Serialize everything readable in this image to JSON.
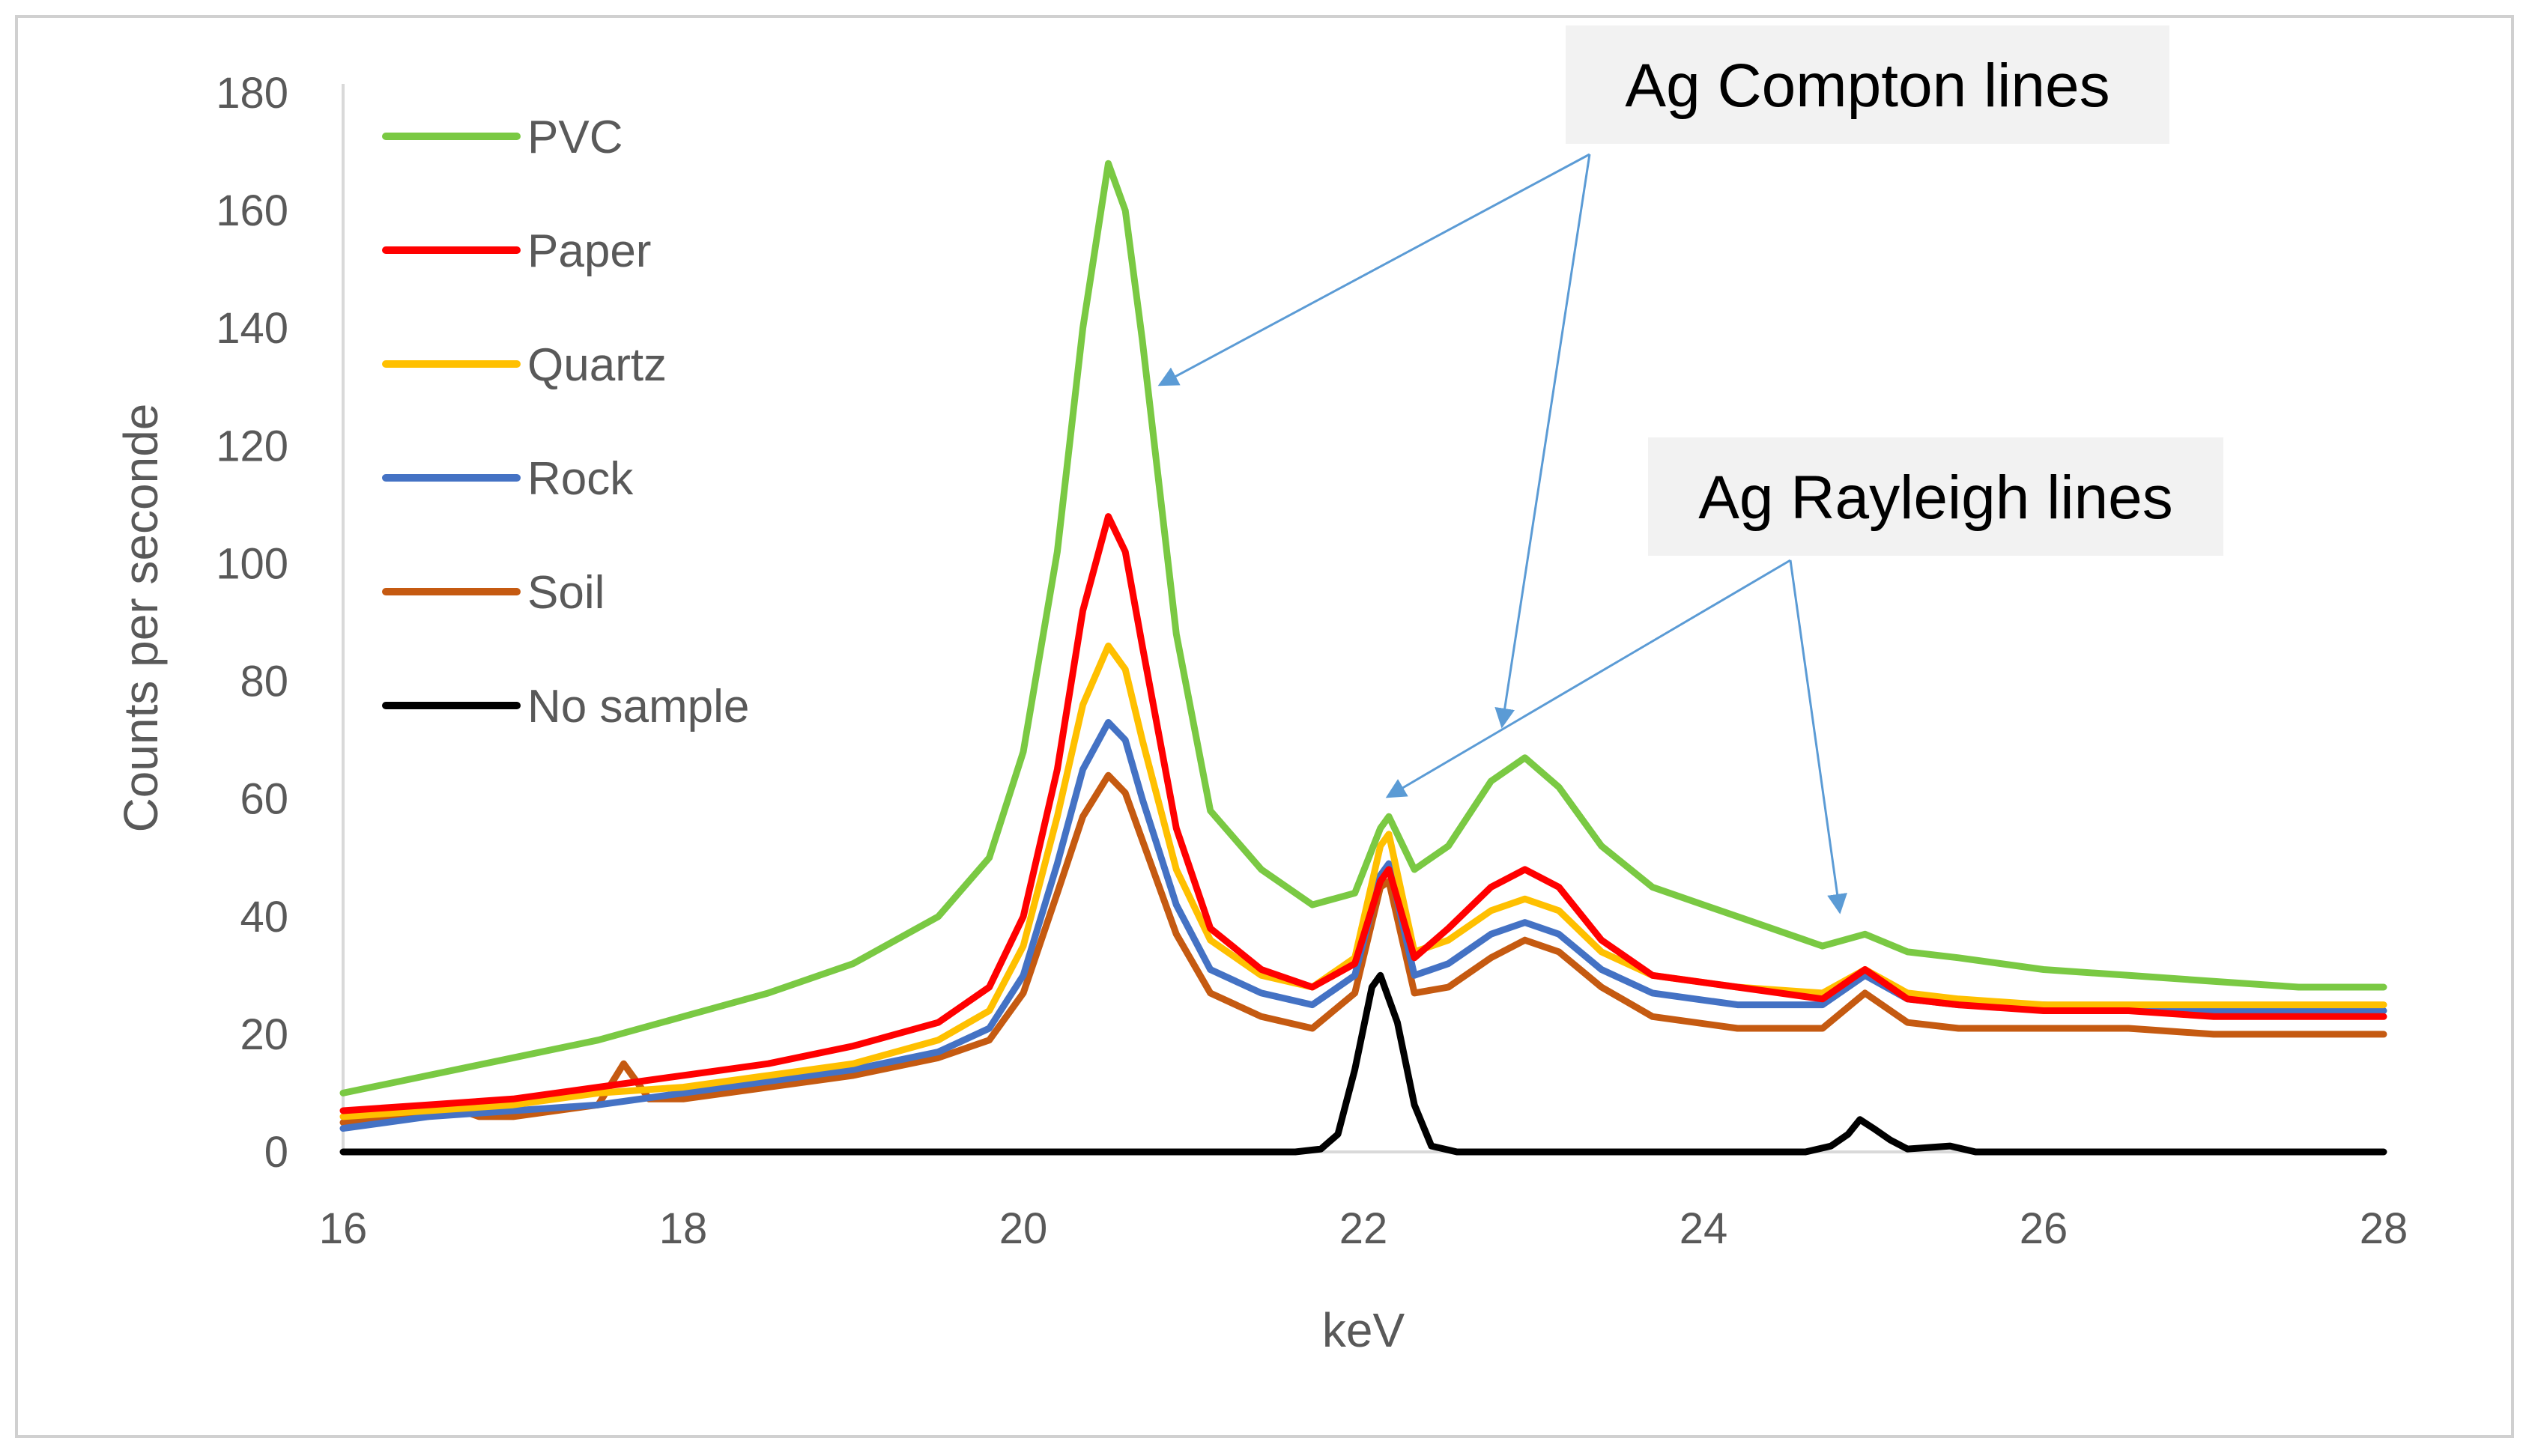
{
  "chart_data": {
    "type": "line",
    "title": "",
    "xlabel": "keV",
    "ylabel": "Counts per seconde",
    "xlim": [
      16,
      28
    ],
    "ylim": [
      0,
      180
    ],
    "x_ticks": [
      "16",
      "18",
      "20",
      "22",
      "24",
      "26",
      "28"
    ],
    "y_ticks": [
      "0",
      "20",
      "40",
      "60",
      "80",
      "100",
      "120",
      "140",
      "160",
      "180"
    ],
    "grid": false,
    "legend_position": "top-left",
    "series": [
      {
        "name": "PVC",
        "color": "#7ac943",
        "x": [
          16,
          16.5,
          17,
          17.5,
          18,
          18.5,
          19,
          19.5,
          19.8,
          20,
          20.2,
          20.35,
          20.5,
          20.6,
          20.7,
          20.9,
          21.1,
          21.4,
          21.7,
          21.95,
          22.1,
          22.15,
          22.3,
          22.5,
          22.75,
          22.95,
          23.15,
          23.4,
          23.7,
          24.2,
          24.7,
          24.95,
          25.2,
          25.5,
          26,
          26.5,
          27,
          27.5,
          28
        ],
        "values": [
          10,
          13,
          16,
          19,
          23,
          27,
          32,
          40,
          50,
          68,
          102,
          140,
          168,
          160,
          138,
          88,
          58,
          48,
          42,
          44,
          55,
          57,
          48,
          52,
          63,
          67,
          62,
          52,
          45,
          40,
          35,
          37,
          34,
          33,
          31,
          30,
          29,
          28,
          28
        ]
      },
      {
        "name": "Paper",
        "color": "#ff0000",
        "x": [
          16,
          16.5,
          17,
          17.5,
          18,
          18.5,
          19,
          19.5,
          19.8,
          20,
          20.2,
          20.35,
          20.5,
          20.6,
          20.7,
          20.9,
          21.1,
          21.4,
          21.7,
          21.95,
          22.1,
          22.15,
          22.3,
          22.5,
          22.75,
          22.95,
          23.15,
          23.4,
          23.7,
          24.2,
          24.7,
          24.95,
          25.2,
          25.5,
          26,
          26.5,
          27,
          27.5,
          28
        ],
        "values": [
          7,
          8,
          9,
          11,
          13,
          15,
          18,
          22,
          28,
          40,
          65,
          92,
          108,
          102,
          86,
          55,
          38,
          31,
          28,
          32,
          46,
          48,
          33,
          38,
          45,
          48,
          45,
          36,
          30,
          28,
          26,
          31,
          26,
          25,
          24,
          24,
          23,
          23,
          23
        ]
      },
      {
        "name": "Quartz",
        "color": "#ffc000",
        "x": [
          16,
          16.5,
          17,
          17.5,
          18,
          18.5,
          19,
          19.5,
          19.8,
          20,
          20.2,
          20.35,
          20.5,
          20.6,
          20.7,
          20.9,
          21.1,
          21.4,
          21.7,
          21.95,
          22.1,
          22.15,
          22.3,
          22.5,
          22.75,
          22.95,
          23.15,
          23.4,
          23.7,
          24.2,
          24.7,
          24.95,
          25.2,
          25.5,
          26,
          26.5,
          27,
          27.5,
          28
        ],
        "values": [
          6,
          7,
          8,
          10,
          11,
          13,
          15,
          19,
          24,
          35,
          57,
          76,
          86,
          82,
          70,
          48,
          36,
          30,
          28,
          33,
          52,
          54,
          34,
          36,
          41,
          43,
          41,
          34,
          30,
          28,
          27,
          31,
          27,
          26,
          25,
          25,
          25,
          25,
          25
        ]
      },
      {
        "name": "Rock",
        "color": "#4472c4",
        "x": [
          16,
          16.5,
          17,
          17.5,
          18,
          18.5,
          19,
          19.5,
          19.8,
          20,
          20.2,
          20.35,
          20.5,
          20.6,
          20.7,
          20.9,
          21.1,
          21.4,
          21.7,
          21.95,
          22.1,
          22.15,
          22.3,
          22.5,
          22.75,
          22.95,
          23.15,
          23.4,
          23.7,
          24.2,
          24.7,
          24.95,
          25.2,
          25.5,
          26,
          26.5,
          27,
          27.5,
          28
        ],
        "values": [
          4,
          6,
          7,
          8,
          10,
          12,
          14,
          17,
          21,
          30,
          49,
          65,
          73,
          70,
          60,
          42,
          31,
          27,
          25,
          30,
          47,
          49,
          30,
          32,
          37,
          39,
          37,
          31,
          27,
          25,
          25,
          30,
          26,
          25,
          25,
          24,
          24,
          24,
          24
        ]
      },
      {
        "name": "Soil",
        "color": "#c55a11",
        "x": [
          16,
          16.5,
          16.6,
          16.8,
          17,
          17.5,
          17.65,
          17.8,
          18,
          18.5,
          19,
          19.5,
          19.8,
          20,
          20.2,
          20.35,
          20.5,
          20.6,
          20.7,
          20.9,
          21.1,
          21.4,
          21.7,
          21.95,
          22.1,
          22.15,
          22.3,
          22.5,
          22.75,
          22.95,
          23.15,
          23.4,
          23.7,
          24.2,
          24.7,
          24.95,
          25.2,
          25.5,
          26,
          26.5,
          27,
          27.5,
          28
        ],
        "values": [
          5,
          6,
          8,
          6,
          6,
          8,
          15,
          9,
          9,
          11,
          13,
          16,
          19,
          27,
          44,
          57,
          64,
          61,
          53,
          37,
          27,
          23,
          21,
          27,
          45,
          46,
          27,
          28,
          33,
          36,
          34,
          28,
          23,
          21,
          21,
          27,
          22,
          21,
          21,
          21,
          20,
          20,
          20
        ]
      },
      {
        "name": "No sample",
        "color": "#000000",
        "x": [
          16,
          21.6,
          21.75,
          21.85,
          21.95,
          22.05,
          22.1,
          22.2,
          22.3,
          22.4,
          22.55,
          24.6,
          24.75,
          24.85,
          24.92,
          25.0,
          25.1,
          25.2,
          25.45,
          25.6,
          28
        ],
        "values": [
          0,
          0,
          0.5,
          3,
          14,
          28,
          30,
          22,
          8,
          1,
          0,
          0,
          1,
          3,
          5.5,
          4,
          2,
          0.5,
          1,
          0,
          0
        ]
      }
    ],
    "annotations": [
      {
        "text": "Ag Compton lines"
      },
      {
        "text": "Ag Rayleigh lines"
      }
    ]
  }
}
